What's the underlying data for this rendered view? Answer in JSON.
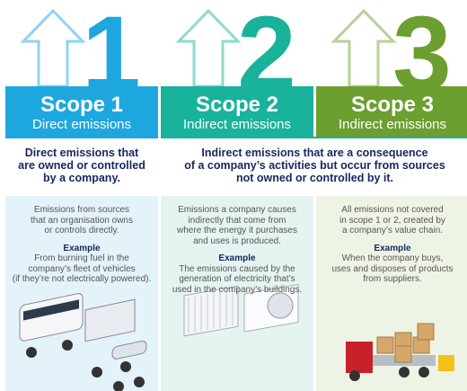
{
  "scopes": [
    {
      "number": "1",
      "title": "Scope 1",
      "subtitle": "Direct emissions",
      "description": [
        "Emissions from sources",
        "that an organisation owns",
        "or controls directly."
      ],
      "example_label": "Example",
      "example": [
        "From burning fuel in the",
        "company’s fleet of vehicles",
        "(if they’re not electrically powered)."
      ]
    },
    {
      "number": "2",
      "title": "Scope 2",
      "subtitle": "Indirect emissions",
      "description": [
        "Emissions a company causes",
        "indirectly that come from",
        "where the energy it purchases",
        "and uses is produced."
      ],
      "example_label": "Example",
      "example": [
        "The emissions caused by the",
        "generation of electricity that’s",
        "used in the company’s buildings."
      ]
    },
    {
      "number": "3",
      "title": "Scope 3",
      "subtitle": "Indirect emissions",
      "description": [
        "All emissions not covered",
        "in scope 1 or 2, created by",
        "a company’s value chain."
      ],
      "example_label": "Example",
      "example": [
        "When the company buys,",
        "uses and disposes of products",
        "from suppliers."
      ]
    }
  ],
  "headlines": [
    [
      "Direct emissions that",
      "are owned or controlled",
      "by a company."
    ],
    [
      "Indirect emissions that are a consequence",
      "of a company’s activities but occur from sources",
      "not owned or controlled by it."
    ]
  ]
}
